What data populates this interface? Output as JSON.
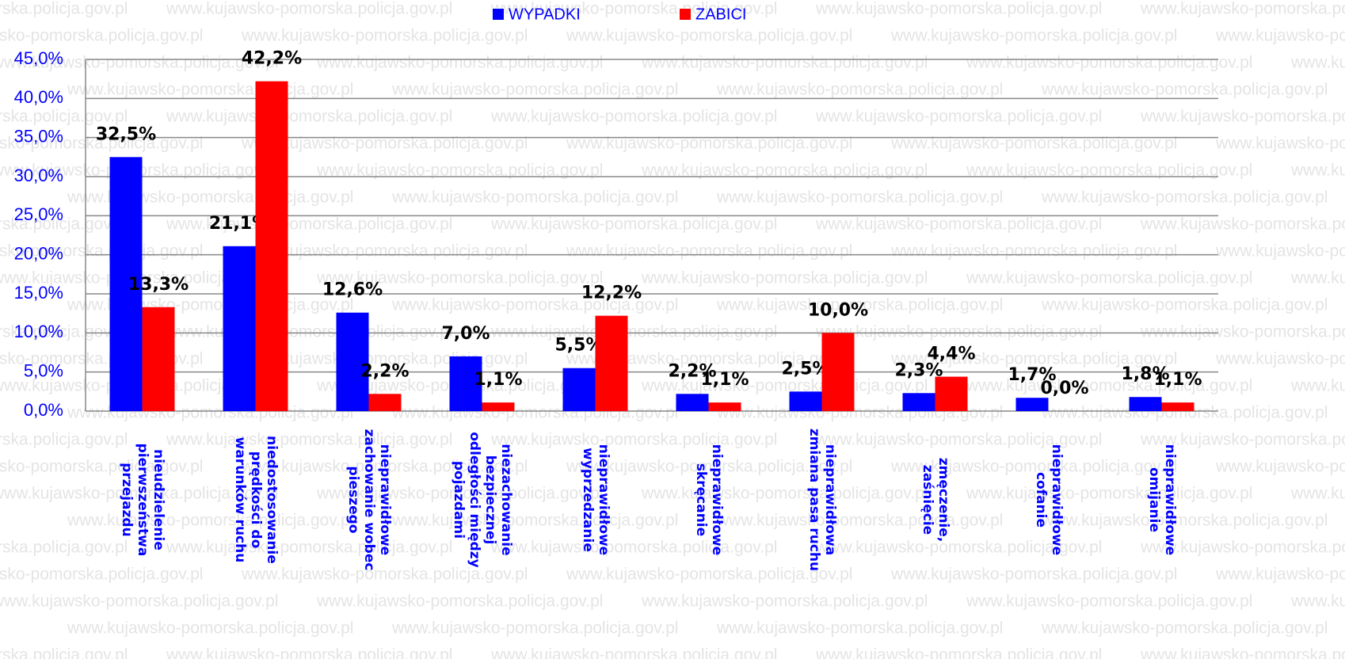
{
  "chart_data": {
    "type": "bar",
    "watermark": "www.kujawsko-pomorska.policja.gov.pl",
    "categories": [
      "nieudzielenie pierwszeństwa przejazdu",
      "niedostosowanie prędkości do warunków ruchu",
      "nieprawidłowe zachowanie wobec pieszego",
      "niezachowanie bezpiecznej odległości między pojazdami",
      "nieprawidłowe wyprzedzanie",
      "nieprawidłowe skręcanie",
      "nieprawidłowa zmiana pasa ruchu",
      "zmęczenie, zaśnięcie",
      "nieprawidłowe cofanie",
      "nieprawidłowe omijanie"
    ],
    "series": [
      {
        "name": "WYPADKI",
        "color": "#0000ff",
        "values": [
          32.5,
          21.1,
          12.6,
          7.0,
          5.5,
          2.2,
          2.5,
          2.3,
          1.7,
          1.8
        ],
        "value_labels": [
          "32,5%",
          "21,1%",
          "12,6%",
          "7,0%",
          "5,5%",
          "2,2%",
          "2,5%",
          "2,3%",
          "1,7%",
          "1,8%"
        ]
      },
      {
        "name": "ZABICI",
        "color": "#ff0000",
        "values": [
          13.3,
          42.2,
          2.2,
          1.1,
          12.2,
          1.1,
          10.0,
          4.4,
          0.0,
          1.1
        ],
        "value_labels": [
          "13,3%",
          "42,2%",
          "2,2%",
          "1,1%",
          "12,2%",
          "1,1%",
          "10,0%",
          "4,4%",
          "0,0%",
          "1,1%"
        ]
      }
    ],
    "ylim": [
      0,
      45
    ],
    "yticks": [
      {
        "value": 0,
        "label": "0,0%"
      },
      {
        "value": 5,
        "label": "5,0%"
      },
      {
        "value": 10,
        "label": "10,0%"
      },
      {
        "value": 15,
        "label": "15,0%"
      },
      {
        "value": 20,
        "label": "20,0%"
      },
      {
        "value": 25,
        "label": "25,0%"
      },
      {
        "value": 30,
        "label": "30,0%"
      },
      {
        "value": 35,
        "label": "35,0%"
      },
      {
        "value": 40,
        "label": "40,0%"
      },
      {
        "value": 45,
        "label": "45,0%"
      }
    ],
    "grid": true,
    "legend": "top"
  }
}
